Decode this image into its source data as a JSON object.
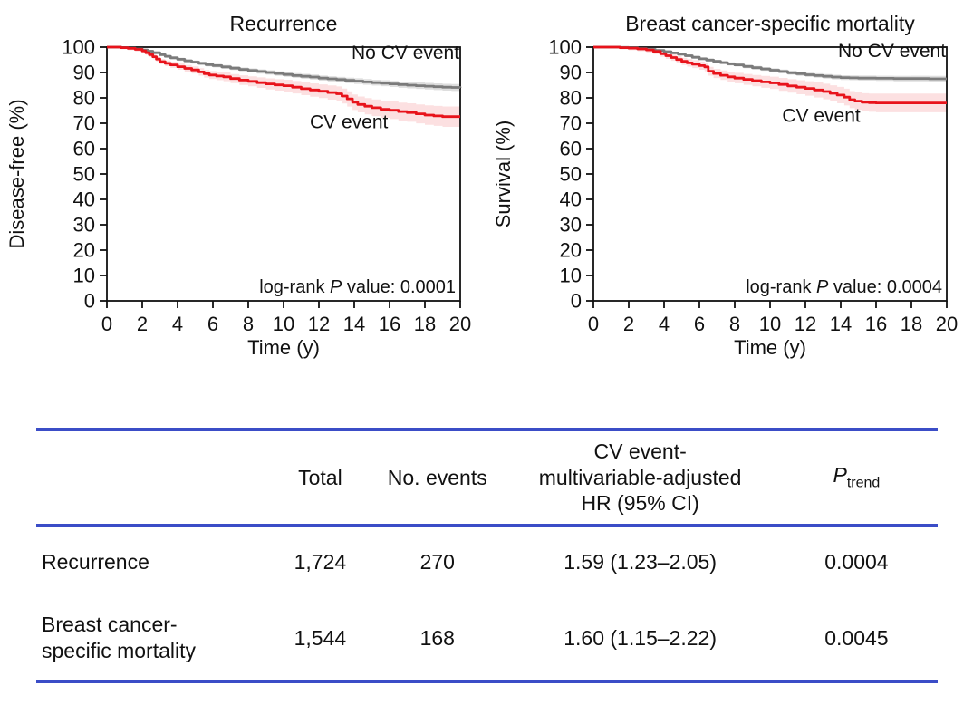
{
  "colors": {
    "rule_blue": "#3b4dc7",
    "cv_event_line": "#e8131b",
    "no_cv_event_line": "#7b7b7b",
    "cv_event_band": "rgba(232,19,27,0.13)",
    "no_cv_event_band": "rgba(125,125,125,0.25)",
    "axis": "#111111"
  },
  "chart_data": [
    {
      "type": "line",
      "subtype": "kaplan-meier-step",
      "title": "Recurrence",
      "xlabel": "Time (y)",
      "ylabel": "Disease-free (%)",
      "xlim": [
        0,
        20
      ],
      "ylim": [
        0,
        100
      ],
      "xticks": [
        0,
        2,
        4,
        6,
        8,
        10,
        12,
        14,
        16,
        18,
        20
      ],
      "yticks": [
        0,
        10,
        20,
        30,
        40,
        50,
        60,
        70,
        80,
        90,
        100
      ],
      "grid": false,
      "legend_position": "in-plot labels",
      "annotation": {
        "pre": "log-rank ",
        "italic": "P",
        "post": " value: 0.0001"
      },
      "labels": [
        {
          "text": "No CV event",
          "x": 16.9,
          "y": 95.3
        },
        {
          "text": "CV event",
          "x": 13.7,
          "y": 68
        }
      ],
      "series": [
        {
          "name": "No CV event",
          "color_key": "no_cv_event_line",
          "band_key": "no_cv_event_band",
          "band_halfwidth": [
            0.4,
            1.4
          ],
          "points": [
            [
              0,
              100
            ],
            [
              0.8,
              99.8
            ],
            [
              1.2,
              99.6
            ],
            [
              1.6,
              99.3
            ],
            [
              2,
              98.9
            ],
            [
              2.3,
              98.4
            ],
            [
              2.6,
              97.8
            ],
            [
              3,
              97
            ],
            [
              3.3,
              96.4
            ],
            [
              3.6,
              95.8
            ],
            [
              4,
              95.2
            ],
            [
              4.4,
              94.6
            ],
            [
              4.8,
              94.1
            ],
            [
              5.2,
              93.6
            ],
            [
              5.6,
              93.1
            ],
            [
              6,
              92.7
            ],
            [
              6.5,
              92.2
            ],
            [
              7,
              91.7
            ],
            [
              7.5,
              91.2
            ],
            [
              8,
              90.8
            ],
            [
              8.5,
              90.4
            ],
            [
              9,
              90
            ],
            [
              9.5,
              89.6
            ],
            [
              10,
              89.2
            ],
            [
              10.5,
              88.8
            ],
            [
              11,
              88.5
            ],
            [
              11.5,
              88.2
            ],
            [
              12,
              87.8
            ],
            [
              12.5,
              87.5
            ],
            [
              13,
              87.2
            ],
            [
              13.5,
              86.9
            ],
            [
              14,
              86.6
            ],
            [
              14.5,
              86.3
            ],
            [
              15,
              86
            ],
            [
              15.5,
              85.8
            ],
            [
              16,
              85.5
            ],
            [
              16.5,
              85.2
            ],
            [
              17,
              85
            ],
            [
              17.5,
              84.8
            ],
            [
              18,
              84.6
            ],
            [
              18.5,
              84.4
            ],
            [
              19,
              84.2
            ],
            [
              19.5,
              84.1
            ],
            [
              20,
              84
            ]
          ]
        },
        {
          "name": "CV event",
          "color_key": "cv_event_line",
          "band_key": "cv_event_band",
          "band_halfwidth": [
            0.5,
            4.2
          ],
          "points": [
            [
              0,
              100
            ],
            [
              0.8,
              99.8
            ],
            [
              1.2,
              99.5
            ],
            [
              1.6,
              99.1
            ],
            [
              2,
              98.5
            ],
            [
              2.2,
              97.8
            ],
            [
              2.4,
              97
            ],
            [
              2.6,
              96.2
            ],
            [
              2.8,
              95.3
            ],
            [
              3,
              94.3
            ],
            [
              3.3,
              93.6
            ],
            [
              3.6,
              93
            ],
            [
              4,
              92.3
            ],
            [
              4.4,
              91.6
            ],
            [
              4.8,
              91
            ],
            [
              5.2,
              90.2
            ],
            [
              5.5,
              89.5
            ],
            [
              5.8,
              89
            ],
            [
              6.2,
              88.6
            ],
            [
              6.6,
              88.3
            ],
            [
              7,
              87.6
            ],
            [
              7.5,
              87
            ],
            [
              8,
              86.5
            ],
            [
              8.5,
              86
            ],
            [
              9,
              85.5
            ],
            [
              9.5,
              85.1
            ],
            [
              10,
              84.8
            ],
            [
              10.5,
              84.2
            ],
            [
              11,
              83.6
            ],
            [
              11.5,
              83.1
            ],
            [
              12,
              82.6
            ],
            [
              12.5,
              82.1
            ],
            [
              13,
              81.6
            ],
            [
              13.3,
              80.7
            ],
            [
              13.6,
              79.6
            ],
            [
              13.9,
              78.3
            ],
            [
              14.2,
              77.4
            ],
            [
              14.6,
              76.7
            ],
            [
              15,
              76.1
            ],
            [
              15.5,
              75.5
            ],
            [
              16,
              75.1
            ],
            [
              16.5,
              74.6
            ],
            [
              17,
              74.2
            ],
            [
              17.5,
              73.7
            ],
            [
              18,
              73.2
            ],
            [
              18.5,
              72.9
            ],
            [
              19,
              72.6
            ],
            [
              20,
              72.6
            ]
          ]
        }
      ]
    },
    {
      "type": "line",
      "subtype": "kaplan-meier-step",
      "title": "Breast cancer-specific mortality",
      "xlabel": "Time (y)",
      "ylabel": "Survival (%)",
      "xlim": [
        0,
        20
      ],
      "ylim": [
        0,
        100
      ],
      "xticks": [
        0,
        2,
        4,
        6,
        8,
        10,
        12,
        14,
        16,
        18,
        20
      ],
      "yticks": [
        0,
        10,
        20,
        30,
        40,
        50,
        60,
        70,
        80,
        90,
        100
      ],
      "grid": false,
      "legend_position": "in-plot labels",
      "annotation": {
        "pre": "log-rank ",
        "italic": "P",
        "post": " value: 0.0004"
      },
      "labels": [
        {
          "text": "No CV event",
          "x": 16.9,
          "y": 96
        },
        {
          "text": "CV event",
          "x": 12.9,
          "y": 70.5
        }
      ],
      "series": [
        {
          "name": "No CV event",
          "color_key": "no_cv_event_line",
          "band_key": "no_cv_event_band",
          "band_halfwidth": [
            0.3,
            1.2
          ],
          "points": [
            [
              0,
              100
            ],
            [
              1.5,
              99.9
            ],
            [
              2,
              99.7
            ],
            [
              2.5,
              99.4
            ],
            [
              3,
              99.1
            ],
            [
              3.5,
              98.7
            ],
            [
              4,
              98.2
            ],
            [
              4.4,
              97.7
            ],
            [
              4.8,
              97.2
            ],
            [
              5.2,
              96.6
            ],
            [
              5.6,
              96
            ],
            [
              6,
              95.4
            ],
            [
              6.4,
              94.9
            ],
            [
              6.8,
              94.4
            ],
            [
              7.2,
              93.9
            ],
            [
              7.6,
              93.4
            ],
            [
              8,
              93
            ],
            [
              8.5,
              92.4
            ],
            [
              9,
              91.9
            ],
            [
              9.5,
              91.4
            ],
            [
              10,
              90.9
            ],
            [
              10.5,
              90.4
            ],
            [
              11,
              89.9
            ],
            [
              11.5,
              89.5
            ],
            [
              12,
              89.1
            ],
            [
              12.5,
              88.8
            ],
            [
              13,
              88.5
            ],
            [
              13.5,
              88.2
            ],
            [
              14,
              88
            ],
            [
              14.5,
              87.9
            ],
            [
              15,
              87.8
            ],
            [
              16,
              87.7
            ],
            [
              17,
              87.6
            ],
            [
              18,
              87.6
            ],
            [
              19,
              87.5
            ],
            [
              20,
              87.5
            ]
          ]
        },
        {
          "name": "CV event",
          "color_key": "cv_event_line",
          "band_key": "cv_event_band",
          "band_halfwidth": [
            0.4,
            4.5
          ],
          "points": [
            [
              0,
              100
            ],
            [
              1.5,
              99.8
            ],
            [
              2,
              99.6
            ],
            [
              2.5,
              99.3
            ],
            [
              3,
              98.9
            ],
            [
              3.4,
              98.3
            ],
            [
              3.8,
              97.4
            ],
            [
              4.1,
              96.6
            ],
            [
              4.4,
              95.9
            ],
            [
              4.7,
              95.1
            ],
            [
              5,
              94.4
            ],
            [
              5.3,
              93.8
            ],
            [
              5.6,
              93.3
            ],
            [
              6,
              92.7
            ],
            [
              6.3,
              92.2
            ],
            [
              6.5,
              90.5
            ],
            [
              6.8,
              89.6
            ],
            [
              7.2,
              88.9
            ],
            [
              7.6,
              88.3
            ],
            [
              8,
              87.8
            ],
            [
              8.5,
              87.3
            ],
            [
              9,
              86.8
            ],
            [
              9.5,
              86.3
            ],
            [
              10,
              85.9
            ],
            [
              10.5,
              85.3
            ],
            [
              11,
              84.7
            ],
            [
              11.5,
              84.2
            ],
            [
              12,
              83.7
            ],
            [
              12.5,
              83.1
            ],
            [
              13,
              82.5
            ],
            [
              13.4,
              81.8
            ],
            [
              13.8,
              81.1
            ],
            [
              14.2,
              80.3
            ],
            [
              14.5,
              79.3
            ],
            [
              14.8,
              78.7
            ],
            [
              15.2,
              78.3
            ],
            [
              15.6,
              78.1
            ],
            [
              16,
              78
            ],
            [
              20,
              78
            ]
          ]
        }
      ]
    }
  ],
  "table": {
    "headers": {
      "total": "Total",
      "no_events": "No. events",
      "hr": "CV event-\nmultivariable-adjusted\nHR (95% CI)",
      "p_italic": "P",
      "p_sub": "trend"
    },
    "rows": [
      {
        "label": "Recurrence",
        "total": "1,724",
        "no_events": "270",
        "hr": "1.59 (1.23–2.05)",
        "p_trend": "0.0004"
      },
      {
        "label": "Breast cancer-\nspecific mortality",
        "total": "1,544",
        "no_events": "168",
        "hr": "1.60 (1.15–2.22)",
        "p_trend": "0.0045"
      }
    ]
  }
}
